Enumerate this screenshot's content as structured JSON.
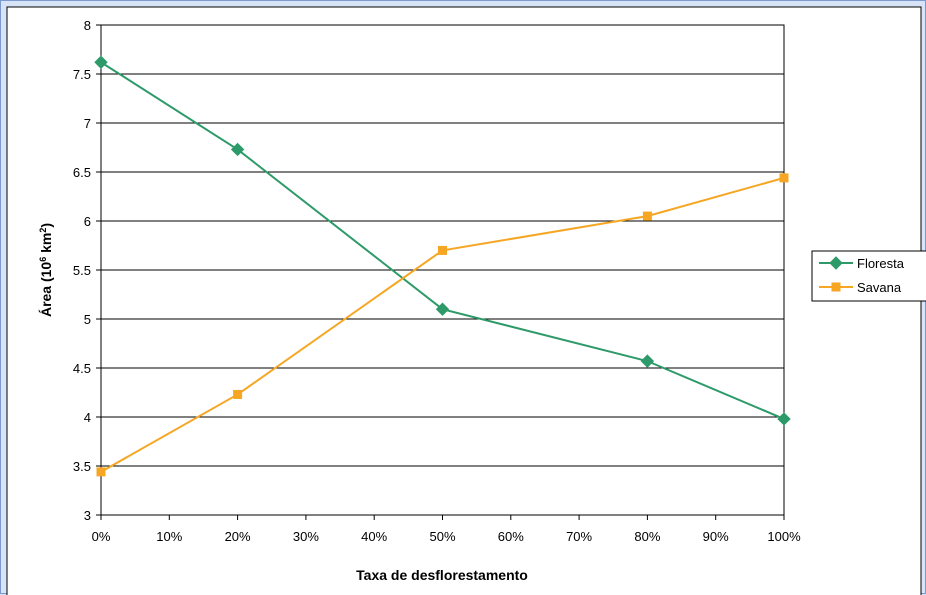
{
  "chart_data": {
    "type": "line",
    "title": "",
    "xlabel": "Taxa de desflorestamento",
    "ylabel": {
      "prefix": "Área (10",
      "sup1": "6",
      "mid": " km",
      "sup2": "2",
      "suffix": ")"
    },
    "x_unit": "%",
    "xlim": [
      0,
      100
    ],
    "ylim": [
      3,
      8
    ],
    "x_ticks": [
      0,
      10,
      20,
      30,
      40,
      50,
      60,
      70,
      80,
      90,
      100
    ],
    "x_tick_labels": [
      "0%",
      "10%",
      "20%",
      "30%",
      "40%",
      "50%",
      "60%",
      "70%",
      "80%",
      "90%",
      "100%"
    ],
    "y_ticks": [
      3,
      3.5,
      4,
      4.5,
      5,
      5.5,
      6,
      6.5,
      7,
      7.5,
      8
    ],
    "y_tick_labels": [
      "3",
      "3.5",
      "4",
      "4.5",
      "5",
      "5.5",
      "6",
      "6.5",
      "7",
      "7.5",
      "8"
    ],
    "grid": "horizontal",
    "legend_position": "right",
    "series": [
      {
        "name": "Floresta",
        "color": "#2e9a6a",
        "marker": "diamond",
        "x": [
          0,
          20,
          50,
          80,
          100
        ],
        "y": [
          7.62,
          6.73,
          5.1,
          4.57,
          3.98
        ]
      },
      {
        "name": "Savana",
        "color": "#f6a623",
        "marker": "square",
        "x": [
          0,
          20,
          50,
          80,
          100
        ],
        "y": [
          3.44,
          4.23,
          5.7,
          6.05,
          6.44
        ]
      }
    ]
  },
  "colors": {
    "background": "#d7e4f7",
    "plot_area": "#ffffff",
    "frame_border": "#7d9ad0",
    "gridline": "#000000"
  }
}
